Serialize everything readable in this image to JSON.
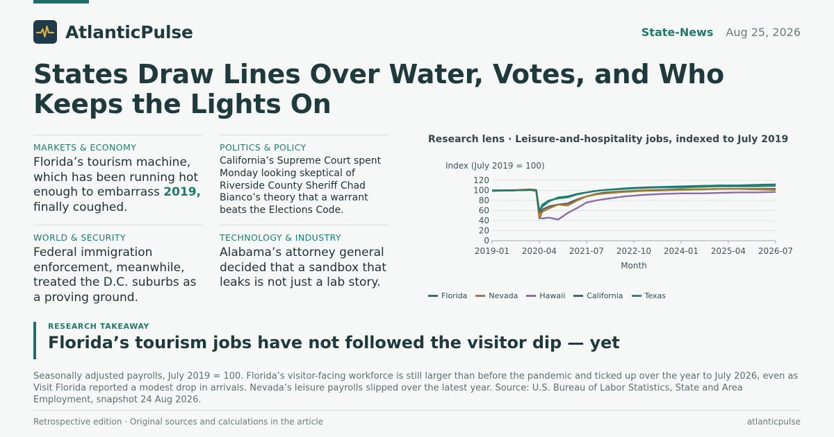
{
  "brand": {
    "name": "AtlanticPulse",
    "logo_icon": "pulse-icon",
    "colors": {
      "accent": "#1f6f66",
      "logo_bg": "#1f3a48",
      "logo_mark": "#e0b040"
    }
  },
  "header": {
    "section": "State-News",
    "date": "Aug 25, 2026"
  },
  "headline": "States Draw Lines Over Water, Votes, and Who Keeps the Lights On",
  "briefs": [
    {
      "kicker": "MARKETS & ECONOMY",
      "text_before": "Florida’s tourism machine, which has been running hot enough to embarrass ",
      "highlight": "2019,",
      "text_after": " finally coughed."
    },
    {
      "kicker": "POLITICS & POLICY",
      "text": "California’s Supreme Court spent Monday looking skeptical of Riverside County Sheriff Chad Bianco’s theory that a warrant beats the Elections Code."
    },
    {
      "kicker": "WORLD & SECURITY",
      "text": "Federal immigration enforcement, meanwhile, treated the D.C. suburbs as a proving ground."
    },
    {
      "kicker": "TECHNOLOGY & INDUSTRY",
      "text": "Alabama’s attorney general decided that a sandbox that leaks is not just a lab story."
    }
  ],
  "chart_title": "Research lens · Leisure-and-hospitality jobs, indexed to July 2019",
  "chart_data": {
    "type": "line",
    "title": "Research lens · Leisure-and-hospitality jobs, indexed to July 2019",
    "ylabel": "Index (July 2019 = 100)",
    "xlabel": "Month",
    "ylim": [
      0,
      120
    ],
    "yticks": [
      0,
      20,
      40,
      60,
      80,
      100,
      120
    ],
    "xticks": [
      "2019-01",
      "2020-04",
      "2021-07",
      "2022-10",
      "2024-01",
      "2025-04",
      "2026-07"
    ],
    "x": [
      "2019-01",
      "2019-07",
      "2020-01",
      "2020-03",
      "2020-04",
      "2020-05",
      "2020-07",
      "2020-10",
      "2021-01",
      "2021-04",
      "2021-07",
      "2021-10",
      "2022-01",
      "2022-07",
      "2023-01",
      "2023-07",
      "2024-01",
      "2024-07",
      "2025-01",
      "2025-07",
      "2026-01",
      "2026-07"
    ],
    "grid": true,
    "legend_position": "bottom-left",
    "series": [
      {
        "name": "Florida",
        "color": "#1f7a6c",
        "values": [
          99,
          100,
          101,
          100,
          60,
          68,
          78,
          86,
          88,
          93,
          96,
          99,
          101,
          104,
          106,
          107,
          108,
          109,
          110,
          110,
          111,
          112
        ]
      },
      {
        "name": "Nevada",
        "color": "#a87a2c",
        "values": [
          100,
          100,
          102,
          101,
          44,
          58,
          64,
          72,
          70,
          80,
          88,
          92,
          94,
          97,
          99,
          100,
          101,
          102,
          103,
          103,
          102,
          101
        ]
      },
      {
        "name": "Hawaii",
        "color": "#8a6aa8",
        "values": [
          100,
          100,
          101,
          99,
          46,
          44,
          46,
          42,
          55,
          65,
          76,
          80,
          83,
          88,
          91,
          93,
          94,
          94,
          95,
          96,
          96,
          97
        ]
      },
      {
        "name": "California",
        "color": "#4f5f66",
        "values": [
          100,
          100,
          101,
          100,
          54,
          62,
          68,
          72,
          74,
          82,
          88,
          93,
          96,
          98,
          100,
          101,
          102,
          102,
          103,
          103,
          103,
          103
        ]
      },
      {
        "name": "Texas",
        "color": "#2a8a7a",
        "values": [
          100,
          100,
          101,
          100,
          58,
          72,
          80,
          84,
          86,
          92,
          96,
          99,
          101,
          103,
          105,
          106,
          106,
          107,
          108,
          108,
          108,
          109
        ]
      }
    ]
  },
  "takeaway": {
    "kicker": "RESEARCH TAKEAWAY",
    "title": "Florida’s tourism jobs have not followed the visitor dip — yet"
  },
  "caption": "Seasonally adjusted payrolls, July 2019 = 100. Florida’s visitor-facing workforce is still larger than before the pandemic and ticked up over the year to July 2026, even as Visit Florida reported a modest drop in arrivals. Nevada’s leisure payrolls slipped over the latest year. Source: U.S. Bureau of Labor Statistics, State and Area Employment, snapshot 24 Aug 2026.",
  "footer": {
    "left": "Retrospective edition · Original sources and calculations in the article",
    "right": "atlanticpulse"
  }
}
